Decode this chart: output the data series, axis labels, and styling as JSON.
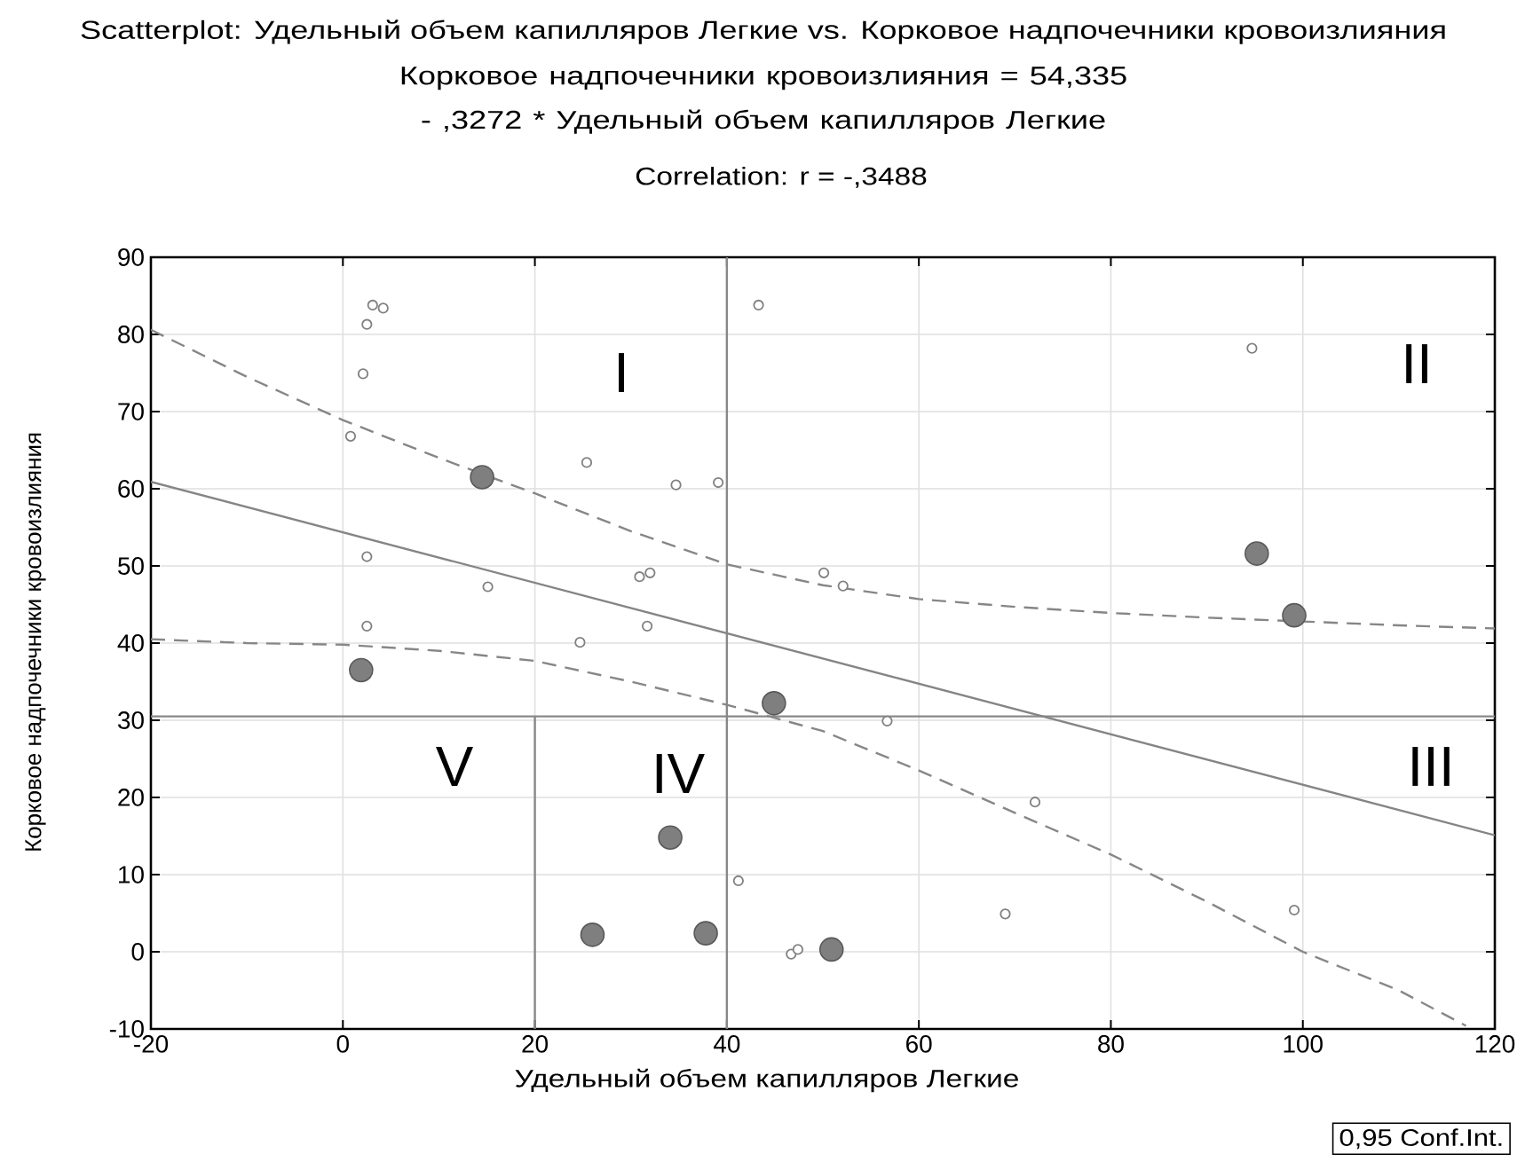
{
  "chart_data": {
    "type": "scatter",
    "title": "Scatterplot: Удельный объем капилляров Легкие vs. Корковое надпочечники кровоизлияния",
    "subtitle": "Корковое надпочечники кровоизлияния = 54,335 - ,3272  * Удельный объем капилляров Легкие",
    "xlabel": "Удельный объем капилляров Легкие",
    "ylabel": "Корковое надпочечники кровоизлияния",
    "xlim": [
      -20,
      120
    ],
    "ylim": [
      -10,
      90
    ],
    "xticks": [
      -20,
      0,
      20,
      40,
      60,
      80,
      100,
      120
    ],
    "yticks": [
      -10,
      0,
      10,
      20,
      30,
      40,
      50,
      60,
      70,
      80,
      90
    ],
    "grid": true,
    "series": [
      {
        "marker": "circle",
        "color": "#ffffff",
        "x": [
          3.1,
          4.2,
          2.5,
          2.1,
          0.8,
          25.4,
          34.7,
          39.1,
          43.3,
          2.5,
          15.1,
          30.9,
          32.0,
          50.1,
          31.7,
          2.5,
          24.7,
          52.1,
          94.7,
          41.2,
          46.7,
          47.4,
          56.7,
          72.1,
          69.0,
          99.1
        ],
        "values": [
          83.8,
          83.4,
          81.3,
          74.9,
          66.8,
          63.4,
          60.5,
          60.8,
          83.8,
          51.2,
          47.3,
          48.6,
          49.1,
          49.1,
          42.2,
          42.2,
          40.1,
          47.4,
          78.2,
          9.2,
          -0.3,
          0.3,
          29.9,
          19.4,
          4.9,
          5.4
        ]
      },
      {
        "type": "bubble",
        "marker": "circle",
        "color": "#7f7f7f",
        "x": [
          14.5,
          95.2,
          99.1,
          1.9,
          44.9,
          34.1,
          26.0,
          37.8,
          50.9
        ],
        "values": [
          61.5,
          51.6,
          43.6,
          36.5,
          32.2,
          14.8,
          2.2,
          2.4,
          0.3
        ],
        "sizes": [
          1,
          1,
          1,
          1,
          1,
          1,
          1,
          1,
          1
        ]
      },
      {
        "type": "line",
        "marker": "none",
        "line_style": "solid",
        "color": "#858585",
        "x": [
          -20,
          120
        ],
        "values": [
          60.9,
          15.1
        ]
      },
      {
        "type": "line",
        "marker": "none",
        "line_style": "dashed",
        "color": "#868686",
        "x": [
          -20,
          -10,
          0,
          10,
          20,
          30,
          40,
          50,
          60,
          70,
          80,
          90,
          100,
          110,
          120
        ],
        "values": [
          80.6,
          74.5,
          68.9,
          64,
          59.4,
          54.5,
          50.2,
          47.5,
          45.7,
          44.7,
          43.9,
          43.3,
          42.8,
          42.3,
          41.9
        ]
      },
      {
        "type": "line",
        "marker": "none",
        "line_style": "dashed",
        "color": "#878787",
        "x": [
          -20,
          -10,
          0,
          10,
          20,
          30,
          40,
          50,
          60,
          70,
          80,
          90,
          100,
          110,
          117
        ],
        "values": [
          40.5,
          40,
          39.8,
          39,
          37.7,
          35,
          32,
          28.6,
          23.5,
          18,
          12.6,
          6.5,
          0,
          -5,
          -9.6
        ]
      },
      {
        "type": "line",
        "marker": "none",
        "line_style": "solid",
        "color": "#888888",
        "x": [
          20,
          20
        ],
        "values": [
          -10,
          30.5
        ]
      }
    ],
    "ref_lines": [
      {
        "axis": "y",
        "value": 30.5,
        "color": "#888888",
        "line_style": "solid"
      },
      {
        "axis": "x",
        "value": 40,
        "color": "#888888",
        "line_style": "solid"
      }
    ],
    "annotations": [
      "Correlation: r = -,3488",
      "0,95 Conf.Int.",
      "I",
      "II",
      "III",
      "IV",
      "V"
    ]
  }
}
